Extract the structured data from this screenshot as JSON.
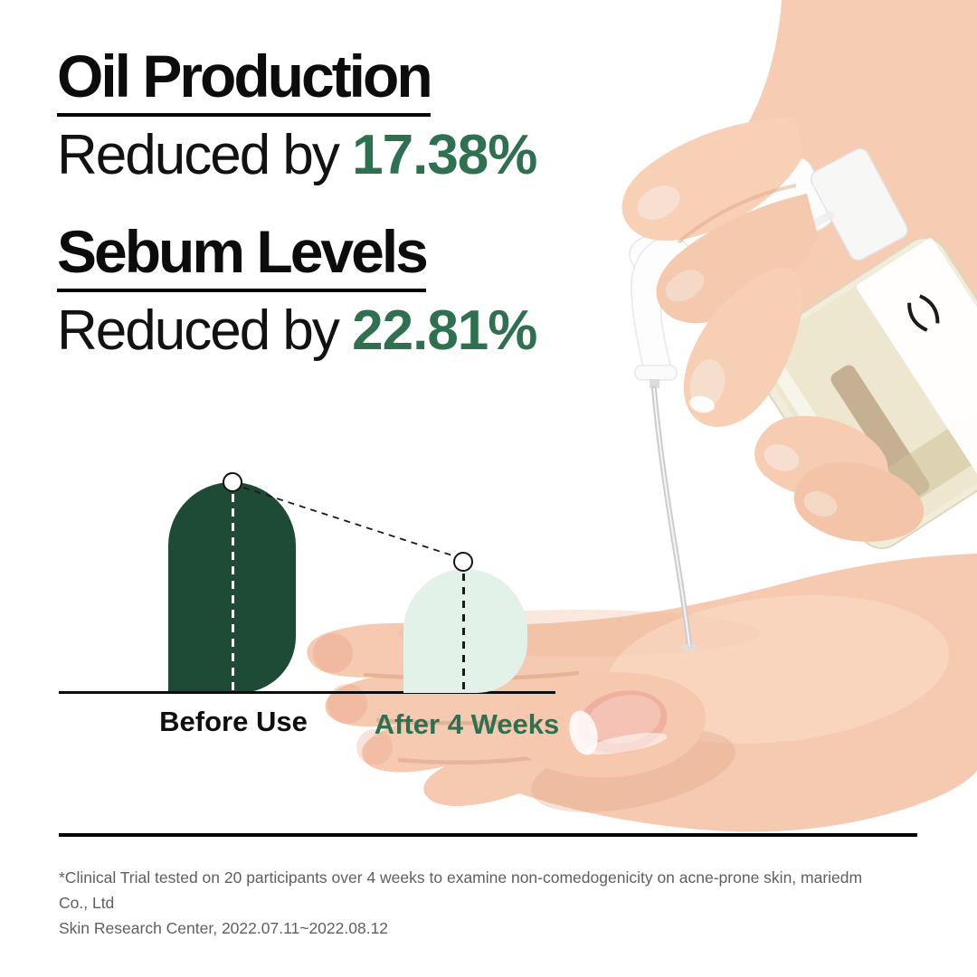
{
  "headline": {
    "stats": [
      {
        "title": "Oil Production",
        "prefix": "Reduced by ",
        "value": "17.38%"
      },
      {
        "title": "Sebum Levels",
        "prefix": "Reduced by ",
        "value": "22.81%"
      }
    ]
  },
  "chart_data": {
    "type": "bar",
    "title": "",
    "xlabel": "",
    "ylabel": "",
    "categories": [
      "Before Use",
      "After 4 Weeks"
    ],
    "values_relative_height": [
      100,
      59
    ],
    "stated_reductions": [
      {
        "metric": "Oil Production",
        "percent": 17.38
      },
      {
        "metric": "Sebum Levels",
        "percent": 22.81
      }
    ],
    "legend": "none",
    "grid": false,
    "axis": "baseline only",
    "colors": {
      "before_bar": "#1d4b35",
      "after_bar": "#e2f2e9"
    },
    "annotations": "dashed line connects white circle markers on top of each bar"
  },
  "footnote": {
    "line1": "*Clinical Trial tested on 20 participants over 4 weeks to examine non-comedogenicity on acne-prone skin, mariedm Co., Ltd",
    "line2": "Skin Research Center, 2022.07.11~2022.08.12"
  },
  "colors": {
    "accent_green": "#2e7050",
    "dark_bar": "#1d4b35",
    "light_bar": "#e2f2e9",
    "heading_text": "#0c0c0c",
    "footnote_gray": "#5f5f5f"
  }
}
